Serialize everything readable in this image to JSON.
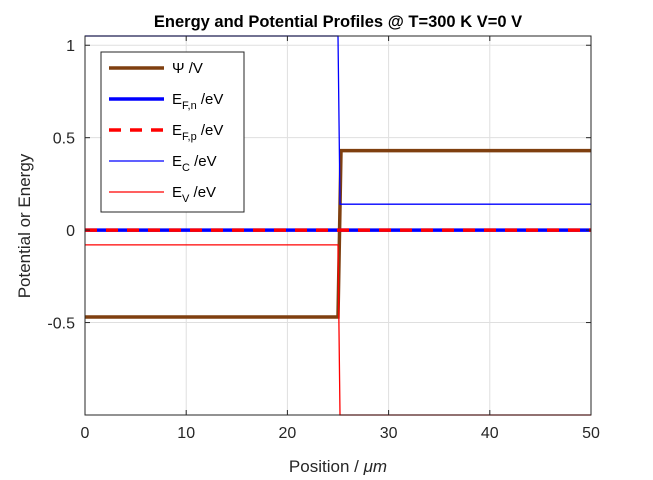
{
  "chart_data": {
    "type": "line",
    "title": "Energy and Potential Profiles @ T=300 K V=0 V",
    "xlabel_main": "Position / ",
    "xlabel_unit": "μm",
    "ylabel": "Potential or Energy",
    "xlim": [
      0,
      50
    ],
    "ylim": [
      -1,
      1.05
    ],
    "xticks": [
      0,
      10,
      20,
      30,
      40,
      50
    ],
    "xtick_labels": [
      "0",
      "10",
      "20",
      "30",
      "40",
      "50"
    ],
    "yticks": [
      -0.5,
      0,
      0.5,
      1
    ],
    "ytick_labels": [
      "-0.5",
      "0",
      "0.5",
      "1"
    ],
    "grid": true,
    "legend_position": "top-left",
    "series": [
      {
        "name": "Ψ /V",
        "label_main": "Ψ /V",
        "label_sub": "",
        "label_suffix": "",
        "color": "#7f3f0f",
        "width": 3.5,
        "dash": "",
        "x": [
          0,
          25,
          25.3,
          50
        ],
        "y": [
          -0.47,
          -0.47,
          0.43,
          0.43
        ]
      },
      {
        "name": "EF,n /eV",
        "label_main": "E",
        "label_sub": "F,n",
        "label_suffix": " /eV",
        "color": "#0000ff",
        "width": 3.5,
        "dash": "",
        "x": [
          0,
          50
        ],
        "y": [
          0,
          0
        ]
      },
      {
        "name": "EF,p /eV",
        "label_main": "E",
        "label_sub": "F,p",
        "label_suffix": " /eV",
        "color": "#ff0000",
        "width": 3.5,
        "dash": "12 9",
        "x": [
          0,
          50
        ],
        "y": [
          0,
          0
        ]
      },
      {
        "name": "EC /eV",
        "label_main": "E",
        "label_sub": "C",
        "label_suffix": " /eV",
        "color": "#0000ff",
        "width": 1.3,
        "dash": "",
        "x": [
          0,
          25,
          25.2,
          50
        ],
        "y": [
          1.05,
          1.05,
          0.14,
          0.14
        ]
      },
      {
        "name": "EV /eV",
        "label_main": "E",
        "label_sub": "V",
        "label_suffix": " /eV",
        "color": "#ff0000",
        "width": 1.3,
        "dash": "",
        "x": [
          0,
          25,
          25.2,
          50
        ],
        "y": [
          -0.08,
          -0.08,
          -1,
          -1
        ]
      }
    ]
  }
}
